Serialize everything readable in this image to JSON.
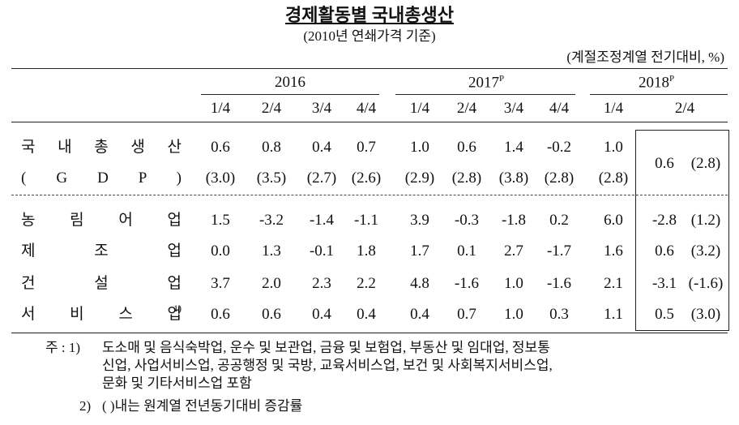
{
  "header": {
    "title": "경제활동별 국내총생산",
    "subtitle": "(2010년 연쇄가격 기준)",
    "unit": "(계절조정계열 전기대비, %)"
  },
  "table": {
    "years": [
      {
        "label": "2016"
      },
      {
        "label": "2017",
        "sup": "P"
      },
      {
        "label": "2018",
        "sup": "P"
      }
    ],
    "quarters": [
      "1/4",
      "2/4",
      "3/4",
      "4/4",
      "1/4",
      "2/4",
      "3/4",
      "4/4",
      "1/4",
      "2/4"
    ],
    "rows": [
      {
        "label": "국 내 총 생 산",
        "values": [
          "0.6",
          "0.8",
          "0.4",
          "0.7",
          "1.0",
          "0.6",
          "1.4",
          "-0.2",
          "1.0",
          "0.6",
          "(2.8)"
        ],
        "sub_label": "( G D P )",
        "sub_values": [
          "(3.0)",
          "(3.5)",
          "(2.7)",
          "(2.6)",
          "(2.9)",
          "(2.8)",
          "(3.8)",
          "(2.8)",
          "(2.8)"
        ]
      },
      {
        "label": "농 림 어 업",
        "values": [
          "1.5",
          "-3.2",
          "-1.4",
          "-1.1",
          "3.9",
          "-0.3",
          "-1.8",
          "0.2",
          "6.0",
          "-2.8",
          "(1.2)"
        ]
      },
      {
        "label": "제 조 업",
        "values": [
          "0.0",
          "1.3",
          "-0.1",
          "1.8",
          "1.7",
          "0.1",
          "2.7",
          "-1.7",
          "1.6",
          "0.6",
          "(3.2)"
        ]
      },
      {
        "label": "건 설 업",
        "values": [
          "3.7",
          "2.0",
          "2.3",
          "2.2",
          "4.8",
          "-1.6",
          "1.0",
          "-1.6",
          "2.1",
          "-3.1",
          "(-1.6)"
        ]
      },
      {
        "label": "서 비 스 업",
        "note_ref": "1)",
        "values": [
          "0.6",
          "0.6",
          "0.4",
          "0.4",
          "0.4",
          "0.7",
          "1.0",
          "0.3",
          "1.1",
          "0.5",
          "(3.0)"
        ]
      }
    ]
  },
  "notes": [
    {
      "marker": "주 : 1)",
      "lines": [
        "도소매 및 음식숙박업, 운수 및 보관업, 금융 및 보험업, 부동산 및 임대업, 정보통",
        "신업, 사업서비스업, 공공행정 및 국방, 교육서비스업, 보건 및 사회복지서비스업,",
        "문화 및 기타서비스업 포함"
      ]
    },
    {
      "marker": "2)",
      "lines": [
        "( )내는 원계열 전년동기대비 증감률"
      ]
    }
  ]
}
